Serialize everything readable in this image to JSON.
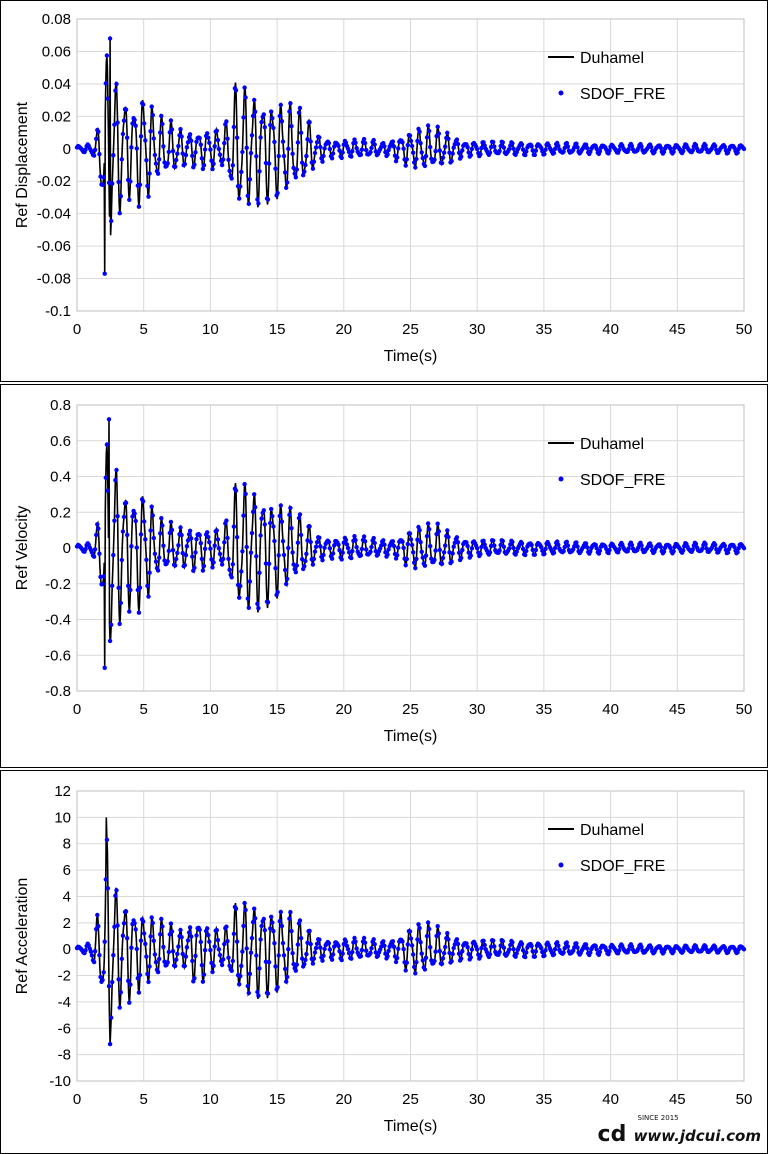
{
  "chart_data": [
    {
      "type": "line",
      "ylabel": "Ref Displacement",
      "xlabel": "Time(s)",
      "xlim": [
        0,
        50
      ],
      "ylim": [
        -0.1,
        0.08
      ],
      "xticks": [
        0,
        5,
        10,
        15,
        20,
        25,
        30,
        35,
        40,
        45,
        50
      ],
      "xtick_labels": [
        "0",
        "5",
        "10",
        "15",
        "20",
        "25",
        "30",
        "35",
        "40",
        "45",
        "50"
      ],
      "yticks": [
        -0.1,
        -0.08,
        -0.06,
        -0.04,
        -0.02,
        0,
        0.02,
        0.04,
        0.06,
        0.08
      ],
      "ytick_labels": [
        "-0.1",
        "-0.08",
        "-0.06",
        "-0.04",
        "-0.02",
        "0",
        "0.02",
        "0.04",
        "0.06",
        "0.08"
      ],
      "grid": true,
      "legend_position": "top-right",
      "legend": [
        "Duhamel",
        "SDOF_FRE"
      ],
      "peaks": {
        "max": {
          "t": 2.5,
          "value": 0.068
        },
        "min": {
          "t": 2.1,
          "value": -0.077
        }
      },
      "envelope": [
        [
          0,
          0.002
        ],
        [
          1,
          0.003
        ],
        [
          1.5,
          0.01
        ],
        [
          2,
          0.05
        ],
        [
          2.5,
          0.07
        ],
        [
          3,
          0.045
        ],
        [
          3.5,
          0.04
        ],
        [
          4,
          0.03
        ],
        [
          5,
          0.04
        ],
        [
          6,
          0.022
        ],
        [
          7,
          0.018
        ],
        [
          8,
          0.012
        ],
        [
          9,
          0.012
        ],
        [
          10,
          0.014
        ],
        [
          11,
          0.013
        ],
        [
          12,
          0.045
        ],
        [
          13,
          0.04
        ],
        [
          14,
          0.035
        ],
        [
          15,
          0.033
        ],
        [
          16,
          0.03
        ],
        [
          17,
          0.025
        ],
        [
          18,
          0.01
        ],
        [
          19,
          0.006
        ],
        [
          20,
          0.006
        ],
        [
          21,
          0.006
        ],
        [
          22,
          0.006
        ],
        [
          23,
          0.004
        ],
        [
          24,
          0.008
        ],
        [
          25,
          0.012
        ],
        [
          26,
          0.015
        ],
        [
          27,
          0.014
        ],
        [
          28,
          0.01
        ],
        [
          29,
          0.005
        ],
        [
          30,
          0.005
        ],
        [
          35,
          0.004
        ],
        [
          40,
          0.003
        ],
        [
          45,
          0.003
        ],
        [
          50,
          0.003
        ]
      ],
      "series": [
        {
          "name": "Duhamel",
          "style": "line",
          "color": "#000000"
        },
        {
          "name": "SDOF_FRE",
          "style": "markers",
          "color": "#0000ff"
        }
      ]
    },
    {
      "type": "line",
      "ylabel": "Ref Velocity",
      "xlabel": "Time(s)",
      "xlim": [
        0,
        50
      ],
      "ylim": [
        -0.8,
        0.8
      ],
      "xticks": [
        0,
        5,
        10,
        15,
        20,
        25,
        30,
        35,
        40,
        45,
        50
      ],
      "xtick_labels": [
        "0",
        "5",
        "10",
        "15",
        "20",
        "25",
        "30",
        "35",
        "40",
        "45",
        "50"
      ],
      "yticks": [
        -0.8,
        -0.6,
        -0.4,
        -0.2,
        0,
        0.2,
        0.4,
        0.6,
        0.8
      ],
      "ytick_labels": [
        "-0.8",
        "-0.6",
        "-0.4",
        "-0.2",
        "0",
        "0.2",
        "0.4",
        "0.6",
        "0.8"
      ],
      "grid": true,
      "legend_position": "top-right",
      "legend": [
        "Duhamel",
        "SDOF_FRE"
      ],
      "peaks": {
        "max": {
          "t": 2.4,
          "value": 0.72
        },
        "min": {
          "t": 2.1,
          "value": -0.67
        }
      },
      "envelope": [
        [
          0,
          0.02
        ],
        [
          1,
          0.03
        ],
        [
          1.5,
          0.12
        ],
        [
          2,
          0.45
        ],
        [
          2.4,
          0.7
        ],
        [
          3,
          0.5
        ],
        [
          3.5,
          0.4
        ],
        [
          4,
          0.35
        ],
        [
          5,
          0.38
        ],
        [
          6,
          0.18
        ],
        [
          7,
          0.15
        ],
        [
          8,
          0.12
        ],
        [
          9,
          0.14
        ],
        [
          10,
          0.12
        ],
        [
          11,
          0.12
        ],
        [
          12,
          0.4
        ],
        [
          13,
          0.4
        ],
        [
          14,
          0.35
        ],
        [
          15,
          0.3
        ],
        [
          16,
          0.24
        ],
        [
          17,
          0.18
        ],
        [
          18,
          0.08
        ],
        [
          19,
          0.06
        ],
        [
          20,
          0.07
        ],
        [
          21,
          0.07
        ],
        [
          22,
          0.06
        ],
        [
          23,
          0.05
        ],
        [
          24,
          0.06
        ],
        [
          25,
          0.12
        ],
        [
          26,
          0.14
        ],
        [
          27,
          0.14
        ],
        [
          28,
          0.1
        ],
        [
          29,
          0.06
        ],
        [
          30,
          0.05
        ],
        [
          35,
          0.04
        ],
        [
          40,
          0.03
        ],
        [
          45,
          0.03
        ],
        [
          50,
          0.03
        ]
      ],
      "series": [
        {
          "name": "Duhamel",
          "style": "line",
          "color": "#000000"
        },
        {
          "name": "SDOF_FRE",
          "style": "markers",
          "color": "#0000ff"
        }
      ]
    },
    {
      "type": "line",
      "ylabel": "Ref Acceleration",
      "xlabel": "Time(s)",
      "xlim": [
        0,
        50
      ],
      "ylim": [
        -10,
        12
      ],
      "xticks": [
        0,
        5,
        10,
        15,
        20,
        25,
        30,
        35,
        40,
        45,
        50
      ],
      "xtick_labels": [
        "0",
        "5",
        "10",
        "15",
        "20",
        "25",
        "30",
        "35",
        "40",
        "45",
        "50"
      ],
      "yticks": [
        -10,
        -8,
        -6,
        -4,
        -2,
        0,
        2,
        4,
        6,
        8,
        10,
        12
      ],
      "ytick_labels": [
        "-10",
        "-8",
        "-6",
        "-4",
        "-2",
        "0",
        "2",
        "4",
        "6",
        "8",
        "10",
        "12"
      ],
      "grid": true,
      "legend_position": "top-right",
      "legend": [
        "Duhamel",
        "SDOF_FRE"
      ],
      "peaks": {
        "max": {
          "t": 2.2,
          "value": 10.0
        },
        "min": {
          "t": 2.5,
          "value": -7.2
        }
      },
      "envelope": [
        [
          0,
          0.2
        ],
        [
          1,
          0.5
        ],
        [
          1.5,
          2.5
        ],
        [
          2,
          5
        ],
        [
          2.3,
          9.5
        ],
        [
          3,
          5
        ],
        [
          3.5,
          4.5
        ],
        [
          4,
          4
        ],
        [
          5,
          3
        ],
        [
          6,
          2.5
        ],
        [
          7,
          2
        ],
        [
          8,
          1.5
        ],
        [
          9,
          3
        ],
        [
          10,
          2
        ],
        [
          11,
          1.5
        ],
        [
          12,
          3.8
        ],
        [
          13,
          4
        ],
        [
          14,
          3.8
        ],
        [
          15,
          3.5
        ],
        [
          16,
          3
        ],
        [
          17,
          2
        ],
        [
          18,
          1
        ],
        [
          19,
          0.8
        ],
        [
          20,
          0.9
        ],
        [
          21,
          0.9
        ],
        [
          22,
          0.8
        ],
        [
          23,
          0.7
        ],
        [
          24,
          1
        ],
        [
          25,
          2
        ],
        [
          26,
          2.2
        ],
        [
          27,
          1.8
        ],
        [
          28,
          1.2
        ],
        [
          29,
          0.8
        ],
        [
          30,
          0.8
        ],
        [
          35,
          0.6
        ],
        [
          40,
          0.4
        ],
        [
          45,
          0.3
        ],
        [
          50,
          0.3
        ]
      ],
      "series": [
        {
          "name": "Duhamel",
          "style": "line",
          "color": "#000000"
        },
        {
          "name": "SDOF_FRE",
          "style": "markers",
          "color": "#0000ff"
        }
      ]
    }
  ],
  "watermark": {
    "logo": "cd",
    "since": "SINCE 2015",
    "text": "www.jdcui.com"
  }
}
